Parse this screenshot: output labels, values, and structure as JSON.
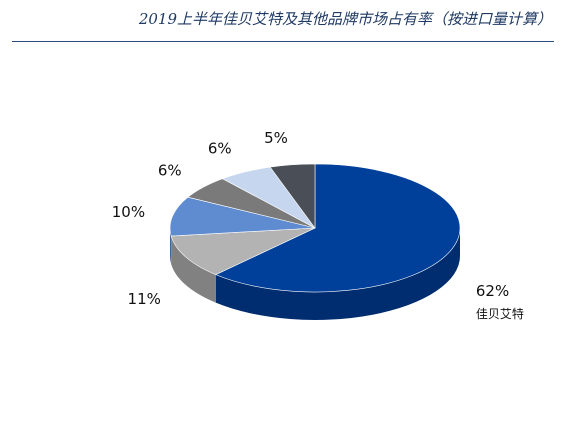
{
  "chart_data": {
    "type": "pie",
    "title": "2019上半年佳贝艾特及其他品牌市场占有率（按进口量计算）",
    "slices": [
      {
        "label": "佳贝艾特",
        "value": 62,
        "value_label": "62%",
        "color": "#003f9a"
      },
      {
        "label": "",
        "value": 11,
        "value_label": "11%",
        "color": "#b3b3b3"
      },
      {
        "label": "",
        "value": 10,
        "value_label": "10%",
        "color": "#5f8bd0"
      },
      {
        "label": "",
        "value": 6,
        "value_label": "6%",
        "color": "#7a7a7a"
      },
      {
        "label": "",
        "value": 6,
        "value_label": "6%",
        "color": "#c5d6ee"
      },
      {
        "label": "",
        "value": 5,
        "value_label": "5%",
        "color": "#4a4f57"
      }
    ],
    "style": "3d"
  }
}
